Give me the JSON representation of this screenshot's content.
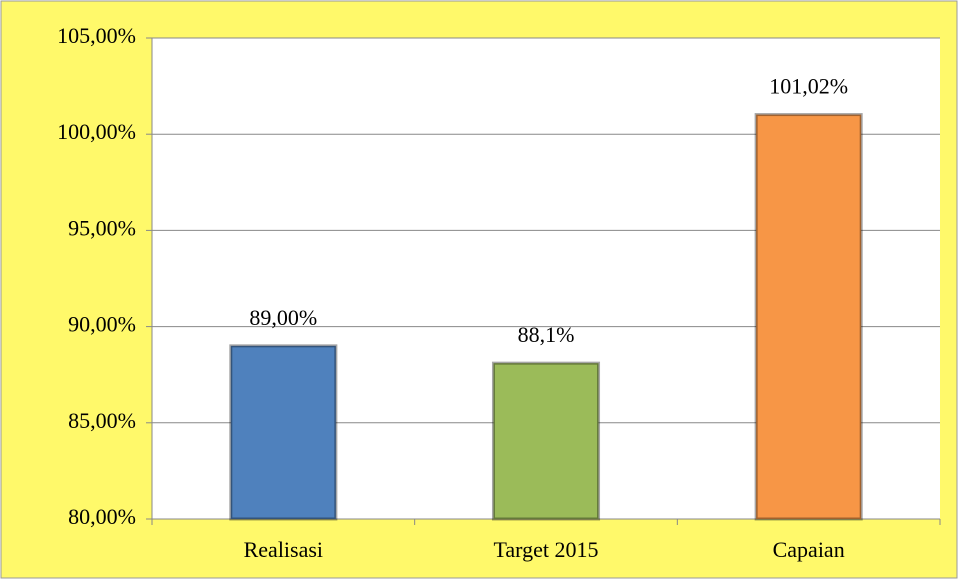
{
  "chart_data": {
    "type": "bar",
    "categories": [
      "Realisasi",
      "Target 2015",
      "Capaian"
    ],
    "values": [
      89,
      88.1,
      101.02
    ],
    "value_labels": [
      "89,00%",
      "88,1%",
      "101,02%"
    ],
    "colors": [
      "#4f81bd",
      "#9bbb59",
      "#f79646"
    ],
    "ylim": [
      80,
      105
    ],
    "yticks": [
      {
        "value": 80,
        "label": "80,00%"
      },
      {
        "value": 85,
        "label": "85,00%"
      },
      {
        "value": 90,
        "label": "90,00%"
      },
      {
        "value": 95,
        "label": "95,00%"
      },
      {
        "value": 100,
        "label": "100,00%"
      },
      {
        "value": 105,
        "label": "105,00%"
      }
    ],
    "grid": true
  }
}
